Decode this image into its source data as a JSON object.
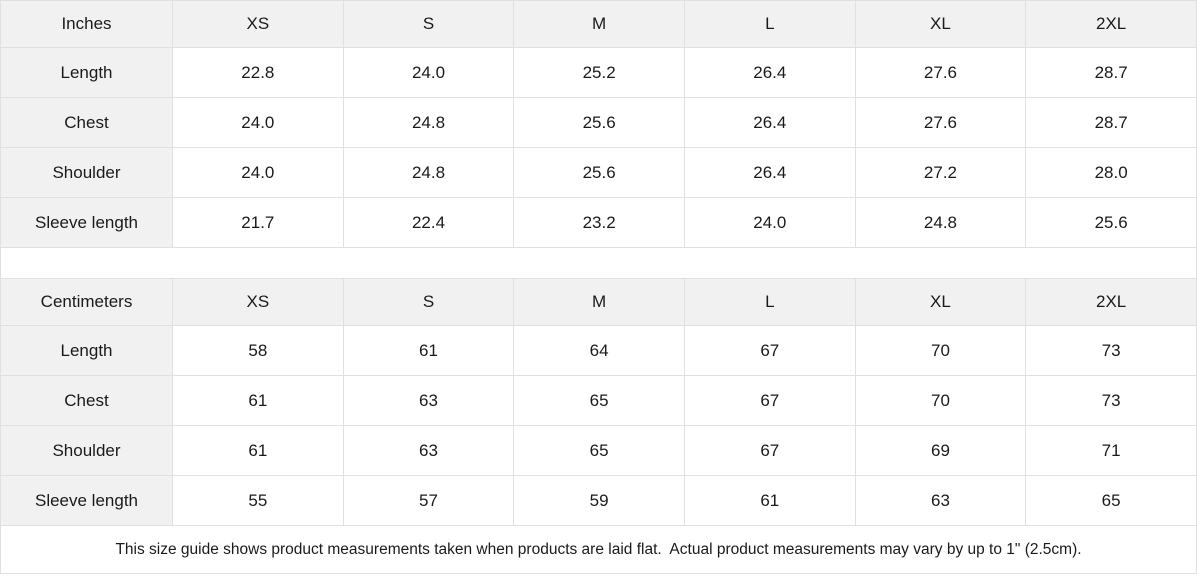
{
  "size_guide": {
    "inches": {
      "unit": "Inches",
      "sizes": [
        "XS",
        "S",
        "M",
        "L",
        "XL",
        "2XL"
      ],
      "rows": [
        {
          "label": "Length",
          "values": [
            "22.8",
            "24.0",
            "25.2",
            "26.4",
            "27.6",
            "28.7"
          ]
        },
        {
          "label": "Chest",
          "values": [
            "24.0",
            "24.8",
            "25.6",
            "26.4",
            "27.6",
            "28.7"
          ]
        },
        {
          "label": "Shoulder",
          "values": [
            "24.0",
            "24.8",
            "25.6",
            "26.4",
            "27.2",
            "28.0"
          ]
        },
        {
          "label": "Sleeve length",
          "values": [
            "21.7",
            "22.4",
            "23.2",
            "24.0",
            "24.8",
            "25.6"
          ]
        }
      ]
    },
    "centimeters": {
      "unit": "Centimeters",
      "sizes": [
        "XS",
        "S",
        "M",
        "L",
        "XL",
        "2XL"
      ],
      "rows": [
        {
          "label": "Length",
          "values": [
            "58",
            "61",
            "64",
            "67",
            "70",
            "73"
          ]
        },
        {
          "label": "Chest",
          "values": [
            "61",
            "63",
            "65",
            "67",
            "70",
            "73"
          ]
        },
        {
          "label": "Shoulder",
          "values": [
            "61",
            "63",
            "65",
            "67",
            "69",
            "71"
          ]
        },
        {
          "label": "Sleeve length",
          "values": [
            "55",
            "57",
            "59",
            "61",
            "63",
            "65"
          ]
        }
      ]
    },
    "footnote": "This size guide shows product measurements taken when products are laid flat.  Actual product measurements may vary by up to 1\" (2.5cm).",
    "colors": {
      "header_bg": "#f1f1f1",
      "border": "#e0e0e0",
      "text": "#1a1a1a",
      "background": "#ffffff"
    }
  }
}
